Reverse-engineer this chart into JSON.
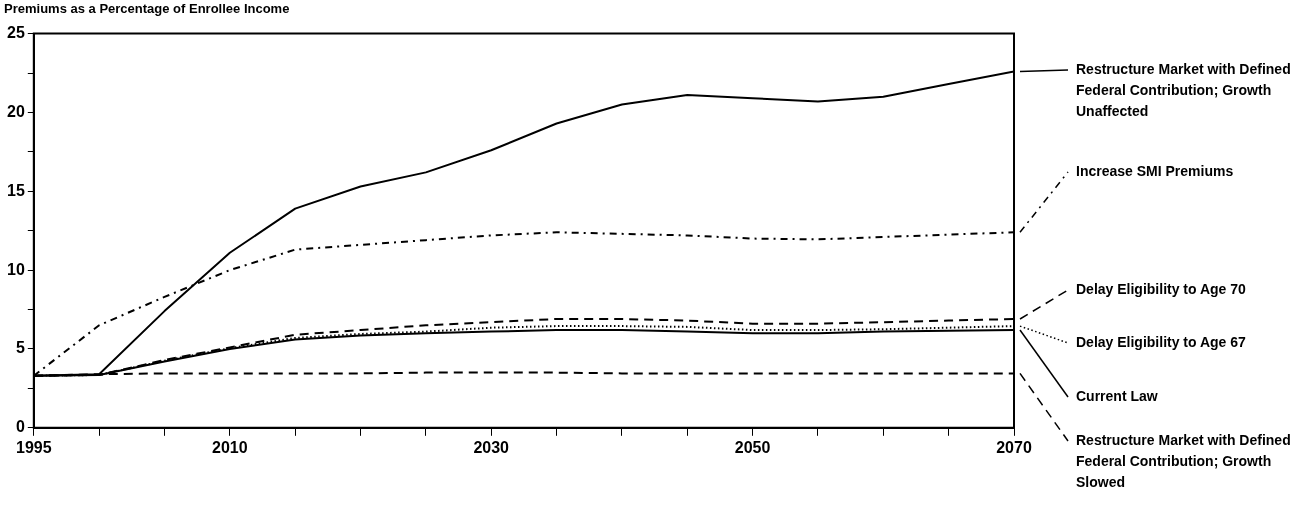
{
  "chart_data": {
    "type": "line",
    "title": "Premiums as a Percentage of Enrollee Income",
    "x": [
      1995,
      2000,
      2005,
      2010,
      2015,
      2020,
      2025,
      2030,
      2035,
      2040,
      2045,
      2050,
      2055,
      2060,
      2065,
      2070
    ],
    "xlim": [
      1995,
      2070
    ],
    "xticks": [
      1995,
      {
        "value": 2000,
        "label": null
      },
      {
        "value": 2005,
        "label": null
      },
      2010,
      {
        "value": 2015,
        "label": null
      },
      {
        "value": 2020,
        "label": null
      },
      {
        "value": 2025,
        "label": null
      },
      2030,
      {
        "value": 2035,
        "label": null
      },
      {
        "value": 2040,
        "label": null
      },
      {
        "value": 2045,
        "label": null
      },
      2050,
      {
        "value": 2055,
        "label": null
      },
      {
        "value": 2060,
        "label": null
      },
      {
        "value": 2065,
        "label": null
      },
      2070
    ],
    "ylim": [
      0,
      25
    ],
    "yticks": [
      0,
      {
        "value": 2.5,
        "label": null
      },
      5,
      {
        "value": 7.5,
        "label": null
      },
      10,
      {
        "value": 12.5,
        "label": null
      },
      15,
      {
        "value": 17.5,
        "label": null
      },
      20,
      {
        "value": 22.5,
        "label": null
      },
      25
    ],
    "grid": false,
    "legend": "right",
    "marker": "none",
    "series": [
      {
        "name": "Restructure Market with Defined Federal Contribution; Growth Unaffected",
        "color": "#000000",
        "line_style": "solid",
        "values": [
          3.3,
          3.4,
          7.4,
          11.1,
          13.9,
          15.3,
          16.2,
          17.6,
          19.3,
          20.5,
          21.1,
          20.9,
          20.7,
          21.0,
          21.8,
          22.6
        ]
      },
      {
        "name": "Increase SMI Premiums",
        "color": "#000000",
        "line_style": "dashdot",
        "values": [
          3.3,
          6.5,
          8.3,
          10.0,
          11.3,
          11.6,
          11.9,
          12.2,
          12.4,
          12.3,
          12.2,
          12.0,
          11.95,
          12.1,
          12.25,
          12.4
        ]
      },
      {
        "name": "Delay Eligibility to Age 70",
        "color": "#000000",
        "line_style": "dashed",
        "values": [
          3.3,
          3.35,
          4.3,
          5.1,
          5.9,
          6.2,
          6.5,
          6.7,
          6.9,
          6.9,
          6.8,
          6.6,
          6.6,
          6.7,
          6.8,
          6.9
        ]
      },
      {
        "name": "Delay Eligibility to Age 67",
        "color": "#000000",
        "line_style": "dotted",
        "values": [
          3.3,
          3.35,
          4.25,
          5.05,
          5.7,
          5.95,
          6.1,
          6.35,
          6.45,
          6.45,
          6.4,
          6.2,
          6.2,
          6.25,
          6.35,
          6.45
        ]
      },
      {
        "name": "Current Law",
        "color": "#000000",
        "line_style": "solid",
        "values": [
          3.3,
          3.35,
          4.2,
          5.0,
          5.6,
          5.85,
          6.0,
          6.1,
          6.2,
          6.2,
          6.1,
          6.0,
          6.0,
          6.1,
          6.15,
          6.2
        ]
      },
      {
        "name": "Restructure Market with Defined Federal Contribution; Growth Slowed",
        "color": "#000000",
        "line_style": "dashed",
        "values": [
          3.3,
          3.4,
          3.45,
          3.45,
          3.45,
          3.45,
          3.5,
          3.5,
          3.5,
          3.45,
          3.45,
          3.45,
          3.45,
          3.45,
          3.45,
          3.45
        ]
      }
    ]
  }
}
